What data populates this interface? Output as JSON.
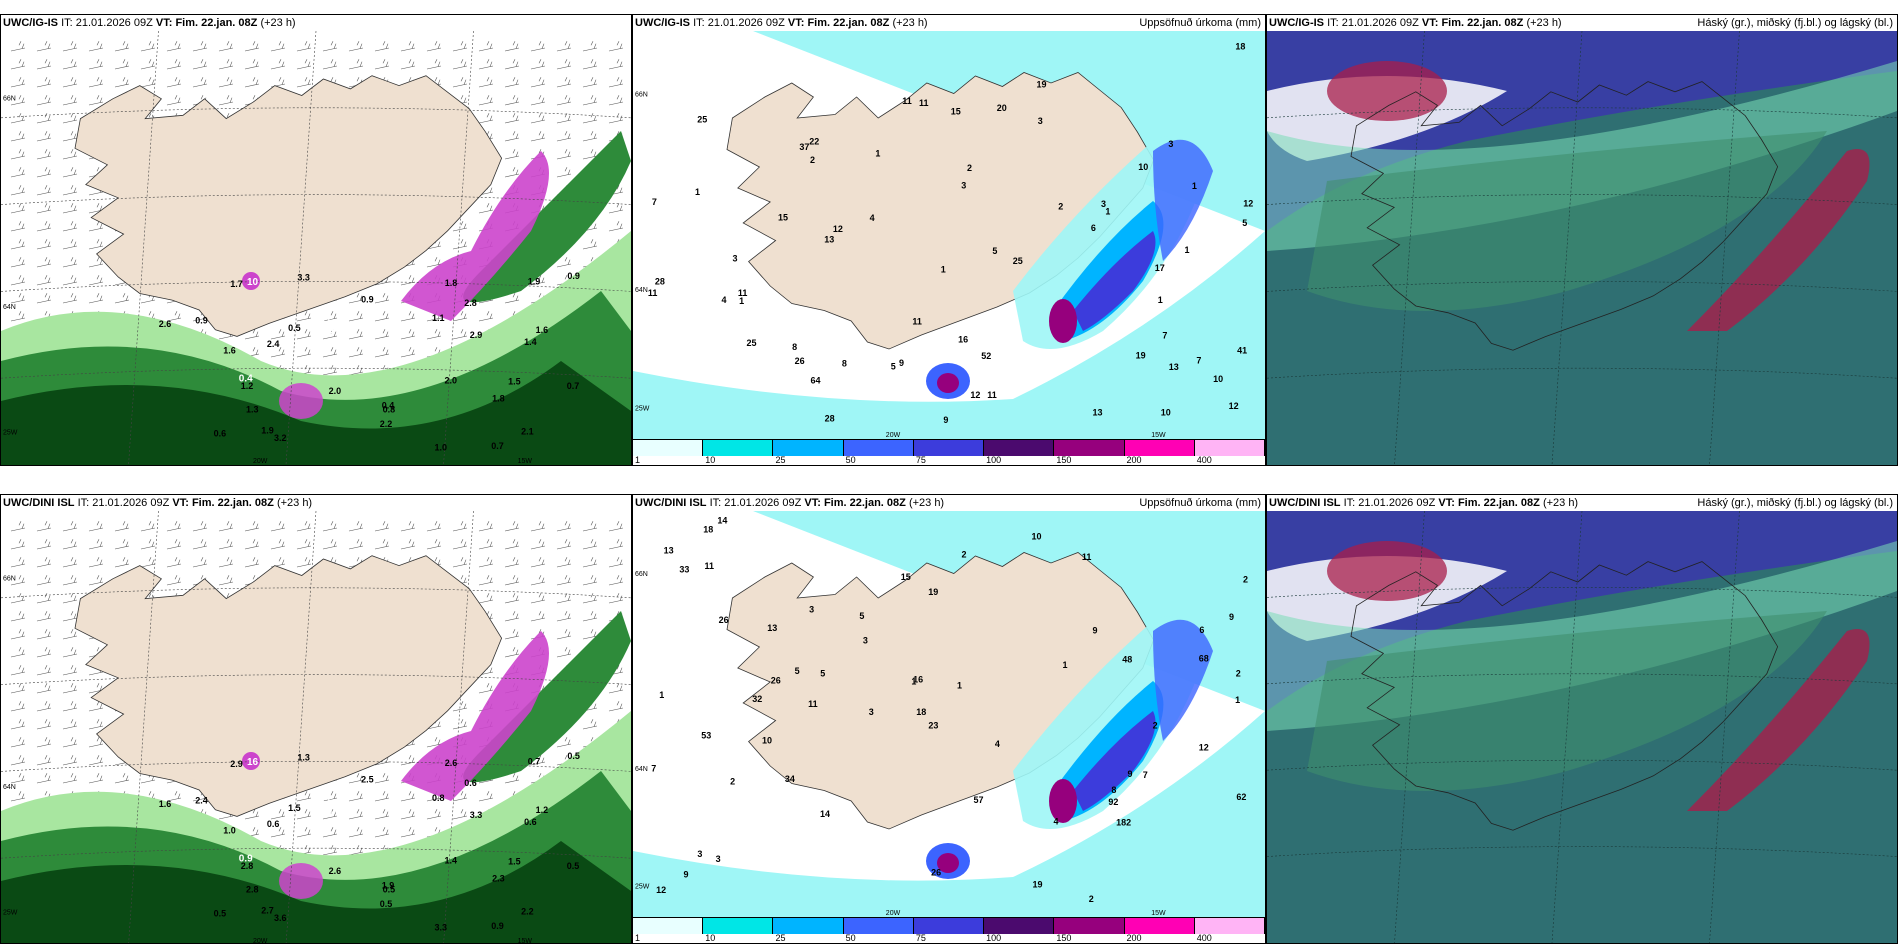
{
  "rows": [
    {
      "model": "UWC/IG-IS",
      "panels": [
        {
          "kind": "wind",
          "labels": [
            "0.7",
            "0.7",
            "0.8",
            "0.6",
            "0.4",
            "0.5",
            "3.3",
            "2.8",
            "1.0",
            "1.4",
            "2.0",
            "1.9",
            "2.6",
            "2.9",
            "3.2",
            "1.7",
            "1.3",
            "1.9",
            "1.8",
            "0.9",
            "0.9",
            "1.5",
            "2.1",
            "1.6",
            "0.9",
            "1.1",
            "1.8",
            "2.0",
            "1.2",
            "2.4",
            "2.2",
            "1.6"
          ],
          "white_labels": [
            "1",
            "10",
            "0.5",
            "0.4"
          ]
        },
        {
          "kind": "precip",
          "labels": [
            "2",
            "1",
            "3",
            "5",
            "10",
            "18",
            "11",
            "1",
            "4",
            "9",
            "11",
            "10",
            "3",
            "6",
            "13",
            "12",
            "7",
            "3",
            "15",
            "25",
            "19",
            "52",
            "12",
            "9",
            "8",
            "11",
            "16",
            "13",
            "26",
            "22",
            "15",
            "37",
            "28",
            "20",
            "19",
            "25",
            "11",
            "8",
            "10",
            "4",
            "1",
            "2",
            "3",
            "1",
            "5",
            "1",
            "1",
            "2",
            "11",
            "11",
            "12",
            "17",
            "64",
            "41",
            "13",
            "5",
            "3",
            "7",
            "7",
            "12",
            "1",
            "1",
            "28",
            "25"
          ]
        },
        {
          "kind": "cloud"
        }
      ]
    },
    {
      "model": "UWC/DINI ISL",
      "panels": [
        {
          "kind": "wind",
          "labels": [
            "0.5",
            "0.9",
            "0.5",
            "0.5",
            "1.9",
            "1.5",
            "1.3",
            "0.6",
            "3.3",
            "0.6",
            "1.4",
            "0.7",
            "1.6",
            "3.3",
            "3.6",
            "2.9",
            "2.8",
            "2.7",
            "2.6",
            "2.5",
            "2.4",
            "1.5",
            "2.2",
            "1.0",
            "0.5",
            "0.8",
            "2.3",
            "2.6",
            "2.8",
            "0.6",
            "0.5",
            "1.2"
          ],
          "white_labels": [
            "0.6",
            "16",
            "4.5",
            "0.9"
          ]
        },
        {
          "kind": "precip",
          "labels": [
            "2",
            "4",
            "3",
            "5",
            "10",
            "19",
            "11",
            "1",
            "5",
            "9",
            "9",
            "2",
            "13",
            "18",
            "15",
            "7",
            "14",
            "16",
            "2",
            "19",
            "34",
            "13",
            "26",
            "26",
            "14",
            "23",
            "18",
            "53",
            "48",
            "57",
            "182",
            "92",
            "9",
            "4",
            "2",
            "3",
            "3",
            "1",
            "8",
            "1",
            "1",
            "3",
            "62",
            "68",
            "26",
            "33",
            "32",
            "12",
            "12",
            "11",
            "11",
            "10",
            "7",
            "9",
            "6",
            "5",
            "2",
            "1",
            "2",
            "3"
          ]
        },
        {
          "kind": "cloud"
        }
      ]
    }
  ],
  "header": {
    "it_label": "IT:",
    "issue_time": "21.01.2026 09Z",
    "vt_label": "VT:",
    "valid_time": "Fim. 22.jan. 08Z",
    "lead": "(+23 h)"
  },
  "precip_title": "Uppsöfnuð úrkoma (mm)",
  "cloud_title": "Háský (gr.), miðský (fj.bl.) og lágský (bl.)",
  "coord_labels": {
    "n66": "66N",
    "n64": "64N",
    "w25": "25W",
    "w20": "20W",
    "w15": "15W"
  },
  "legend": {
    "ticks": [
      "1",
      "10",
      "25",
      "50",
      "75",
      "100",
      "150",
      "200",
      "400"
    ],
    "colors": [
      "#e8ffff",
      "#00e6e6",
      "#00b4ff",
      "#3c64ff",
      "#3c3cdc",
      "#4b0a6e",
      "#96007d",
      "#ff00b4",
      "#ffb4f5"
    ]
  },
  "colors": {
    "land": "#efe0d0",
    "sea_precip": "#9ff6f6",
    "green_dark": "#0a4a14",
    "green_mid": "#2e8b3a",
    "green_light": "#a8e6a0",
    "magenta": "#cc44cc",
    "cloud_teal": "#2f6f72",
    "cloud_green": "#3f8f6e",
    "cloud_blue": "#3a3aa8",
    "cloud_red": "#a81e4a"
  }
}
